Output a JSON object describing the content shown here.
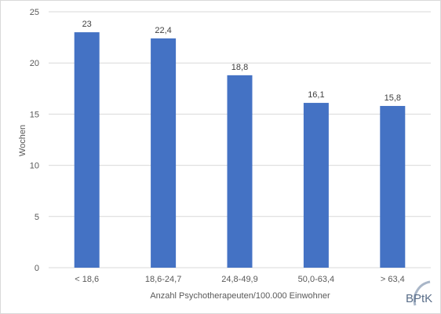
{
  "chart_data": {
    "type": "bar",
    "categories": [
      "< 18,6",
      "18,6-24,7",
      "24,8-49,9",
      "50,0-63,4",
      "> 63,4"
    ],
    "values": [
      23,
      22.4,
      18.8,
      16.1,
      15.8
    ],
    "data_labels": [
      "23",
      "22,4",
      "18,8",
      "16,1",
      "15,8"
    ],
    "yticks": [
      "0",
      "5",
      "10",
      "15",
      "20",
      "25"
    ],
    "ylim": [
      0,
      25
    ],
    "xlabel": "Anzahl Psychotherapeuten/100.000 Einwohner",
    "ylabel": "Wochen",
    "title": "",
    "grid": true,
    "bar_color": "#4472c4",
    "grid_color": "#d9d9d9"
  },
  "logo": {
    "text": "BPtK"
  }
}
